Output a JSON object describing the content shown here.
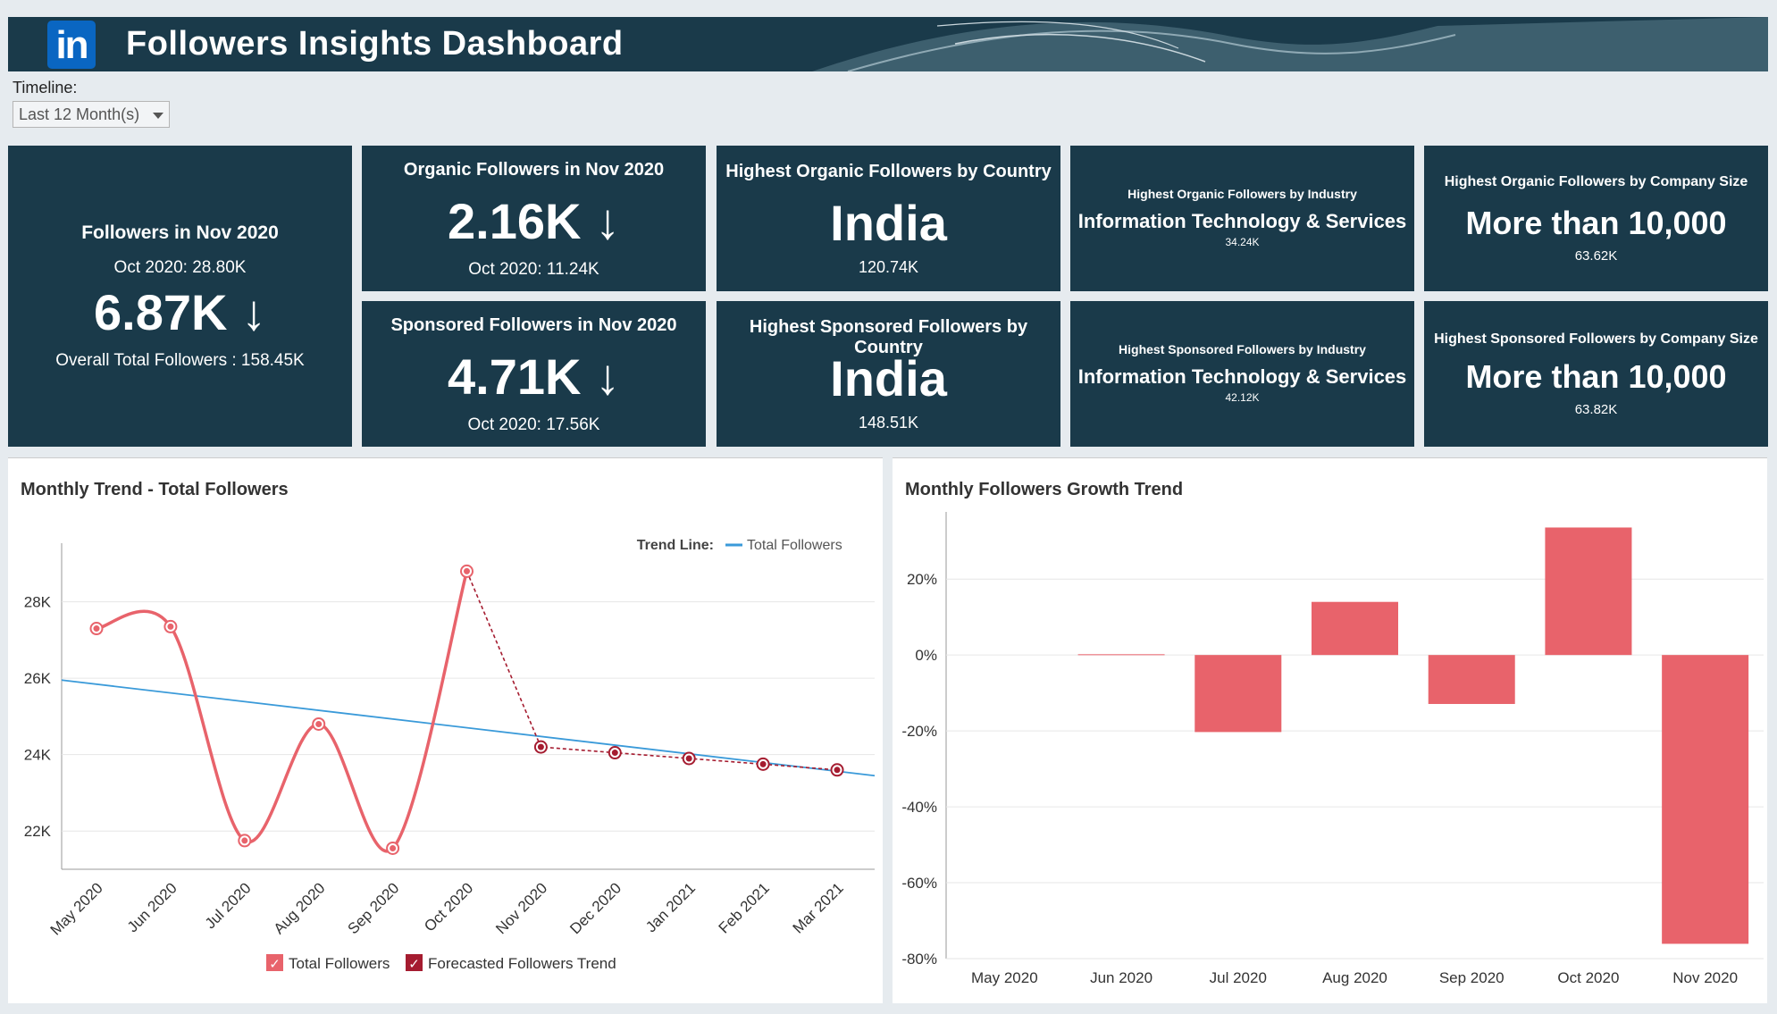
{
  "header": {
    "logo_text": "in",
    "title": "Followers Insights Dashboard"
  },
  "filters": {
    "timeline_label": "Timeline:",
    "timeline_value": "Last 12 Month(s)"
  },
  "kpis": {
    "total": {
      "title": "Followers in Nov 2020",
      "previous": "Oct 2020: 28.80K",
      "value": "6.87K",
      "arrow": "↓",
      "overall": "Overall Total Followers : 158.45K"
    },
    "organic": {
      "title": "Organic Followers in Nov 2020",
      "value": "2.16K",
      "arrow": "↓",
      "previous": "Oct 2020: 11.24K"
    },
    "sponsored": {
      "title": "Sponsored Followers in Nov 2020",
      "value": "4.71K",
      "arrow": "↓",
      "previous": "Oct 2020: 17.56K"
    },
    "organic_country": {
      "title": "Highest Organic Followers by Country",
      "value": "India",
      "sub": "120.74K"
    },
    "sponsored_country": {
      "title": "Highest Sponsored Followers by Country",
      "value": "India",
      "sub": "148.51K"
    },
    "organic_industry": {
      "title": "Highest Organic Followers by Industry",
      "value": "Information Technology & Services",
      "sub": "34.24K"
    },
    "sponsored_industry": {
      "title": "Highest Sponsored Followers by Industry",
      "value": "Information Technology & Services",
      "sub": "42.12K"
    },
    "organic_size": {
      "title": "Highest Organic Followers by Company Size",
      "value": "More than 10,000",
      "sub": "63.62K"
    },
    "sponsored_size": {
      "title": "Highest Sponsored Followers by Company Size",
      "value": "More than 10,000",
      "sub": "63.82K"
    }
  },
  "charts": {
    "trend_title": "Monthly Trend - Total Followers",
    "growth_title": "Monthly Followers Growth Trend",
    "trend_line_label": "Trend Line:",
    "trend_line_series": "Total Followers",
    "legend_total": "Total Followers",
    "legend_forecast": "Forecasted Followers Trend"
  },
  "colors": {
    "navy": "#1a3a4a",
    "actual": "#e8636b",
    "forecast": "#a51c30",
    "trend": "#3a9ad9"
  },
  "chart_data": [
    {
      "type": "line",
      "title": "Monthly Trend - Total Followers",
      "x": [
        "May 2020",
        "Jun 2020",
        "Jul 2020",
        "Aug 2020",
        "Sep 2020",
        "Oct 2020",
        "Nov 2020",
        "Dec 2020",
        "Jan 2021",
        "Feb 2021",
        "Mar 2021"
      ],
      "ylim": [
        21000,
        29300
      ],
      "yticks": [
        22000,
        24000,
        26000,
        28000
      ],
      "ytick_labels": [
        "22K",
        "24K",
        "26K",
        "28K"
      ],
      "series": [
        {
          "name": "Total Followers",
          "values": [
            27300,
            27350,
            21750,
            24800,
            21550,
            28800,
            null,
            null,
            null,
            null,
            null
          ]
        },
        {
          "name": "Forecasted Followers Trend",
          "values": [
            null,
            null,
            null,
            null,
            null,
            28800,
            24200,
            24050,
            23900,
            23750,
            23600
          ]
        }
      ],
      "trend_line": {
        "name": "Total Followers",
        "start": 25950,
        "end": 23450
      }
    },
    {
      "type": "bar",
      "title": "Monthly Followers Growth Trend",
      "categories": [
        "May 2020",
        "Jun 2020",
        "Jul 2020",
        "Aug 2020",
        "Sep 2020",
        "Oct 2020",
        "Nov 2020"
      ],
      "values": [
        0,
        0.2,
        -20.3,
        14,
        -12.9,
        33.6,
        -76.1
      ],
      "ylim": [
        -80,
        33
      ],
      "yticks": [
        -80,
        -60,
        -40,
        -20,
        0,
        20
      ],
      "ytick_labels": [
        "-80%",
        "-60%",
        "-40%",
        "-20%",
        "0%",
        "20%"
      ]
    }
  ]
}
